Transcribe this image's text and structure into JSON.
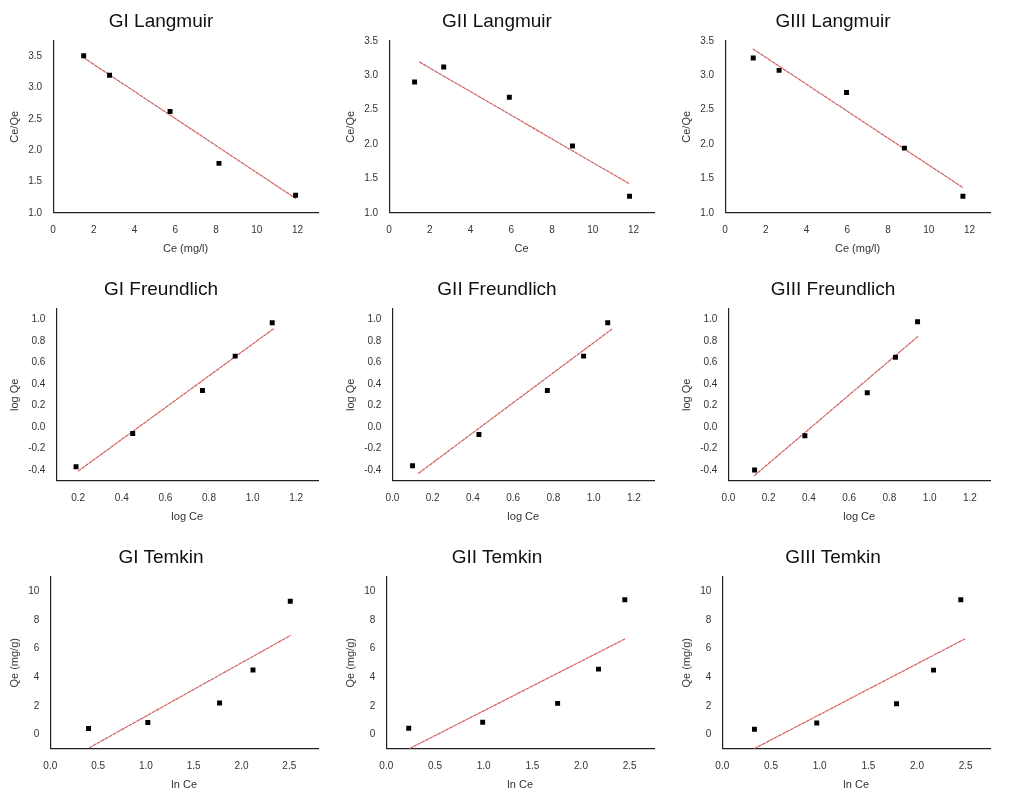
{
  "chart_data": [
    {
      "type": "scatter",
      "title": "GI Langmuir",
      "xlabel": "Ce (mg/l)",
      "ylabel": "Ce/Qe",
      "xlim": [
        0,
        13
      ],
      "xticks": [
        0,
        2,
        4,
        6,
        8,
        10,
        12
      ],
      "ylim": [
        1.0,
        3.75
      ],
      "yticks": [
        {
          "value": 1,
          "label": "1.0"
        },
        {
          "value": 1.5,
          "label": "1.5"
        },
        {
          "value": 2,
          "label": "2.0"
        },
        {
          "value": 2.5,
          "label": "2.5"
        },
        {
          "value": 3,
          "label": "3.0"
        },
        {
          "value": 3.5,
          "label": "3.5"
        }
      ],
      "series": [
        {
          "type": "scatter",
          "color": "#000000",
          "marker": "square",
          "x": [
            1.5,
            2.77,
            5.74,
            8.14,
            11.9
          ],
          "values": [
            3.51,
            3.2,
            2.62,
            1.79,
            1.28
          ]
        },
        {
          "type": "line",
          "color": "#d06060",
          "marker": "none",
          "line_style": "dashed",
          "x": [
            1.5,
            11.9
          ],
          "values": [
            3.48,
            1.23
          ]
        }
      ]
    },
    {
      "type": "scatter",
      "title": "GII Langmuir",
      "xlabel": "Ce",
      "ylabel": "Ce/Qe",
      "xlim": [
        0,
        13
      ],
      "xticks": [
        0,
        2,
        4,
        6,
        8,
        10,
        12
      ],
      "ylim": [
        1.0,
        3.5
      ],
      "yticks": [
        {
          "value": 1,
          "label": "1.0"
        },
        {
          "value": 1.5,
          "label": "1.5"
        },
        {
          "value": 2,
          "label": "2.0"
        },
        {
          "value": 2.5,
          "label": "2.5"
        },
        {
          "value": 3,
          "label": "3.0"
        },
        {
          "value": 3.5,
          "label": "3.5"
        }
      ],
      "series": [
        {
          "type": "scatter",
          "color": "#000000",
          "marker": "square",
          "x": [
            1.25,
            2.68,
            5.9,
            9.0,
            11.8
          ],
          "values": [
            2.9,
            3.12,
            2.68,
            1.97,
            1.24
          ]
        },
        {
          "type": "line",
          "color": "#d06060",
          "marker": "none",
          "line_style": "dashed",
          "x": [
            1.5,
            11.8
          ],
          "values": [
            3.19,
            1.42
          ]
        }
      ]
    },
    {
      "type": "scatter",
      "title": "GIII Langmuir",
      "xlabel": "Ce (mg/l)",
      "ylabel": "Ce/Qe",
      "xlim": [
        0,
        13
      ],
      "xticks": [
        0,
        2,
        4,
        6,
        8,
        10,
        12
      ],
      "ylim": [
        1.0,
        3.5
      ],
      "yticks": [
        {
          "value": 1,
          "label": "1.0"
        },
        {
          "value": 1.5,
          "label": "1.5"
        },
        {
          "value": 2,
          "label": "2.0"
        },
        {
          "value": 2.5,
          "label": "2.5"
        },
        {
          "value": 3,
          "label": "3.0"
        },
        {
          "value": 3.5,
          "label": "3.5"
        }
      ],
      "series": [
        {
          "type": "scatter",
          "color": "#000000",
          "marker": "square",
          "x": [
            1.38,
            2.65,
            5.96,
            8.8,
            11.67
          ],
          "values": [
            3.25,
            3.07,
            2.75,
            1.94,
            1.24
          ]
        },
        {
          "type": "line",
          "color": "#d06060",
          "marker": "none",
          "line_style": "dashed",
          "x": [
            1.38,
            11.65
          ],
          "values": [
            3.38,
            1.37
          ]
        }
      ]
    },
    {
      "type": "scatter",
      "title": "GI Freundlich",
      "xlabel": "log Ce",
      "ylabel": "log Qe",
      "xlim": [
        0.1,
        1.3
      ],
      "xticks": [
        0.2,
        0.4,
        0.6,
        0.8,
        {
          "value": 1,
          "label": "1.0"
        },
        1.2
      ],
      "ylim": [
        -0.5,
        1.1
      ],
      "yticks": [
        -0.4,
        -0.2,
        {
          "value": 0,
          "label": "0.0"
        },
        0.2,
        0.4,
        0.6,
        0.8,
        {
          "value": 1,
          "label": "1.0"
        }
      ],
      "series": [
        {
          "type": "scatter",
          "color": "#000000",
          "marker": "square",
          "x": [
            0.19,
            0.45,
            0.77,
            0.92,
            1.09
          ],
          "values": [
            -0.37,
            -0.06,
            0.34,
            0.66,
            0.97
          ]
        },
        {
          "type": "line",
          "color": "#d06060",
          "marker": "none",
          "line_style": "dashed",
          "x": [
            0.2,
            1.1
          ],
          "values": [
            -0.41,
            0.92
          ]
        }
      ]
    },
    {
      "type": "scatter",
      "title": "GII Freundlich",
      "xlabel": "log Ce",
      "ylabel": "log Qe",
      "xlim": [
        0,
        1.3
      ],
      "xticks": [
        {
          "value": 0,
          "label": "0.0"
        },
        0.2,
        0.4,
        0.6,
        0.8,
        {
          "value": 1,
          "label": "1.0"
        },
        1.2
      ],
      "ylim": [
        -0.5,
        1.1
      ],
      "yticks": [
        -0.4,
        -0.2,
        {
          "value": 0,
          "label": "0.0"
        },
        0.2,
        0.4,
        0.6,
        0.8,
        {
          "value": 1,
          "label": "1.0"
        }
      ],
      "series": [
        {
          "type": "scatter",
          "color": "#000000",
          "marker": "square",
          "x": [
            0.1,
            0.43,
            0.77,
            0.95,
            1.07
          ],
          "values": [
            -0.36,
            -0.07,
            0.34,
            0.66,
            0.97
          ]
        },
        {
          "type": "line",
          "color": "#d06060",
          "marker": "none",
          "line_style": "dashed",
          "x": [
            0.13,
            1.09
          ],
          "values": [
            -0.43,
            0.91
          ]
        }
      ]
    },
    {
      "type": "scatter",
      "title": "GIII Freundlich",
      "xlabel": "log Ce",
      "ylabel": "log Qe",
      "xlim": [
        0,
        1.3
      ],
      "xticks": [
        {
          "value": 0,
          "label": "0.0"
        },
        0.2,
        0.4,
        0.6,
        0.8,
        {
          "value": 1,
          "label": "1.0"
        },
        1.2
      ],
      "ylim": [
        -0.5,
        1.1
      ],
      "yticks": [
        -0.4,
        -0.2,
        {
          "value": 0,
          "label": "0.0"
        },
        0.2,
        0.4,
        0.6,
        0.8,
        {
          "value": 1,
          "label": "1.0"
        }
      ],
      "series": [
        {
          "type": "scatter",
          "color": "#000000",
          "marker": "square",
          "x": [
            0.13,
            0.38,
            0.69,
            0.83,
            0.94
          ],
          "values": [
            -0.4,
            -0.08,
            0.32,
            0.65,
            0.98
          ]
        },
        {
          "type": "line",
          "color": "#d06060",
          "marker": "none",
          "line_style": "dashed",
          "x": [
            0.13,
            0.94
          ],
          "values": [
            -0.45,
            0.84
          ]
        }
      ]
    },
    {
      "type": "scatter",
      "title": "GI Temkin",
      "xlabel": "ln Ce",
      "ylabel": "Qe (mg/g)",
      "xlim": [
        0,
        2.8
      ],
      "xticks": [
        {
          "value": 0,
          "label": "0.0"
        },
        0.5,
        {
          "value": 1,
          "label": "1.0"
        },
        1.5,
        {
          "value": 2,
          "label": "2.0"
        },
        2.5
      ],
      "ylim": [
        -1,
        11
      ],
      "yticks": [
        0,
        2,
        4,
        6,
        8,
        10
      ],
      "series": [
        {
          "type": "scatter",
          "color": "#000000",
          "marker": "square",
          "x": [
            0.4,
            1.02,
            1.77,
            2.12,
            2.51
          ],
          "values": [
            0.42,
            0.83,
            2.2,
            4.5,
            9.3
          ]
        },
        {
          "type": "line",
          "color": "#d06060",
          "marker": "none",
          "line_style": "dashed",
          "x": [
            0.41,
            2.51
          ],
          "values": [
            -0.92,
            6.9
          ]
        }
      ]
    },
    {
      "type": "scatter",
      "title": "GII Temkin",
      "xlabel": "ln Ce",
      "ylabel": "Qe (mg/g)",
      "xlim": [
        0,
        2.75
      ],
      "xticks": [
        {
          "value": 0,
          "label": "0.0"
        },
        0.5,
        {
          "value": 1,
          "label": "1.0"
        },
        1.5,
        {
          "value": 2,
          "label": "2.0"
        },
        2.5
      ],
      "ylim": [
        -1,
        11
      ],
      "yticks": [
        0,
        2,
        4,
        6,
        8,
        10
      ],
      "series": [
        {
          "type": "scatter",
          "color": "#000000",
          "marker": "square",
          "x": [
            0.23,
            0.99,
            1.76,
            2.18,
            2.45
          ],
          "values": [
            0.44,
            0.85,
            2.17,
            4.56,
            9.4
          ]
        },
        {
          "type": "line",
          "color": "#d06060",
          "marker": "none",
          "line_style": "dashed",
          "x": [
            0.24,
            2.45
          ],
          "values": [
            -0.98,
            6.66
          ]
        }
      ]
    },
    {
      "type": "scatter",
      "title": "GIII Temkin",
      "xlabel": "ln Ce",
      "ylabel": "Qe (mg/g)",
      "xlim": [
        0,
        2.75
      ],
      "xticks": [
        {
          "value": 0,
          "label": "0.0"
        },
        0.5,
        {
          "value": 1,
          "label": "1.0"
        },
        1.5,
        {
          "value": 2,
          "label": "2.0"
        },
        2.5
      ],
      "ylim": [
        -1,
        11
      ],
      "yticks": [
        0,
        2,
        4,
        6,
        8,
        10
      ],
      "series": [
        {
          "type": "scatter",
          "color": "#000000",
          "marker": "square",
          "x": [
            0.33,
            0.97,
            1.79,
            2.17,
            2.45
          ],
          "values": [
            0.37,
            0.8,
            2.15,
            4.49,
            9.4
          ]
        },
        {
          "type": "line",
          "color": "#d06060",
          "marker": "none",
          "line_style": "dashed",
          "x": [
            0.33,
            2.49
          ],
          "values": [
            -0.98,
            6.66
          ]
        }
      ]
    }
  ]
}
